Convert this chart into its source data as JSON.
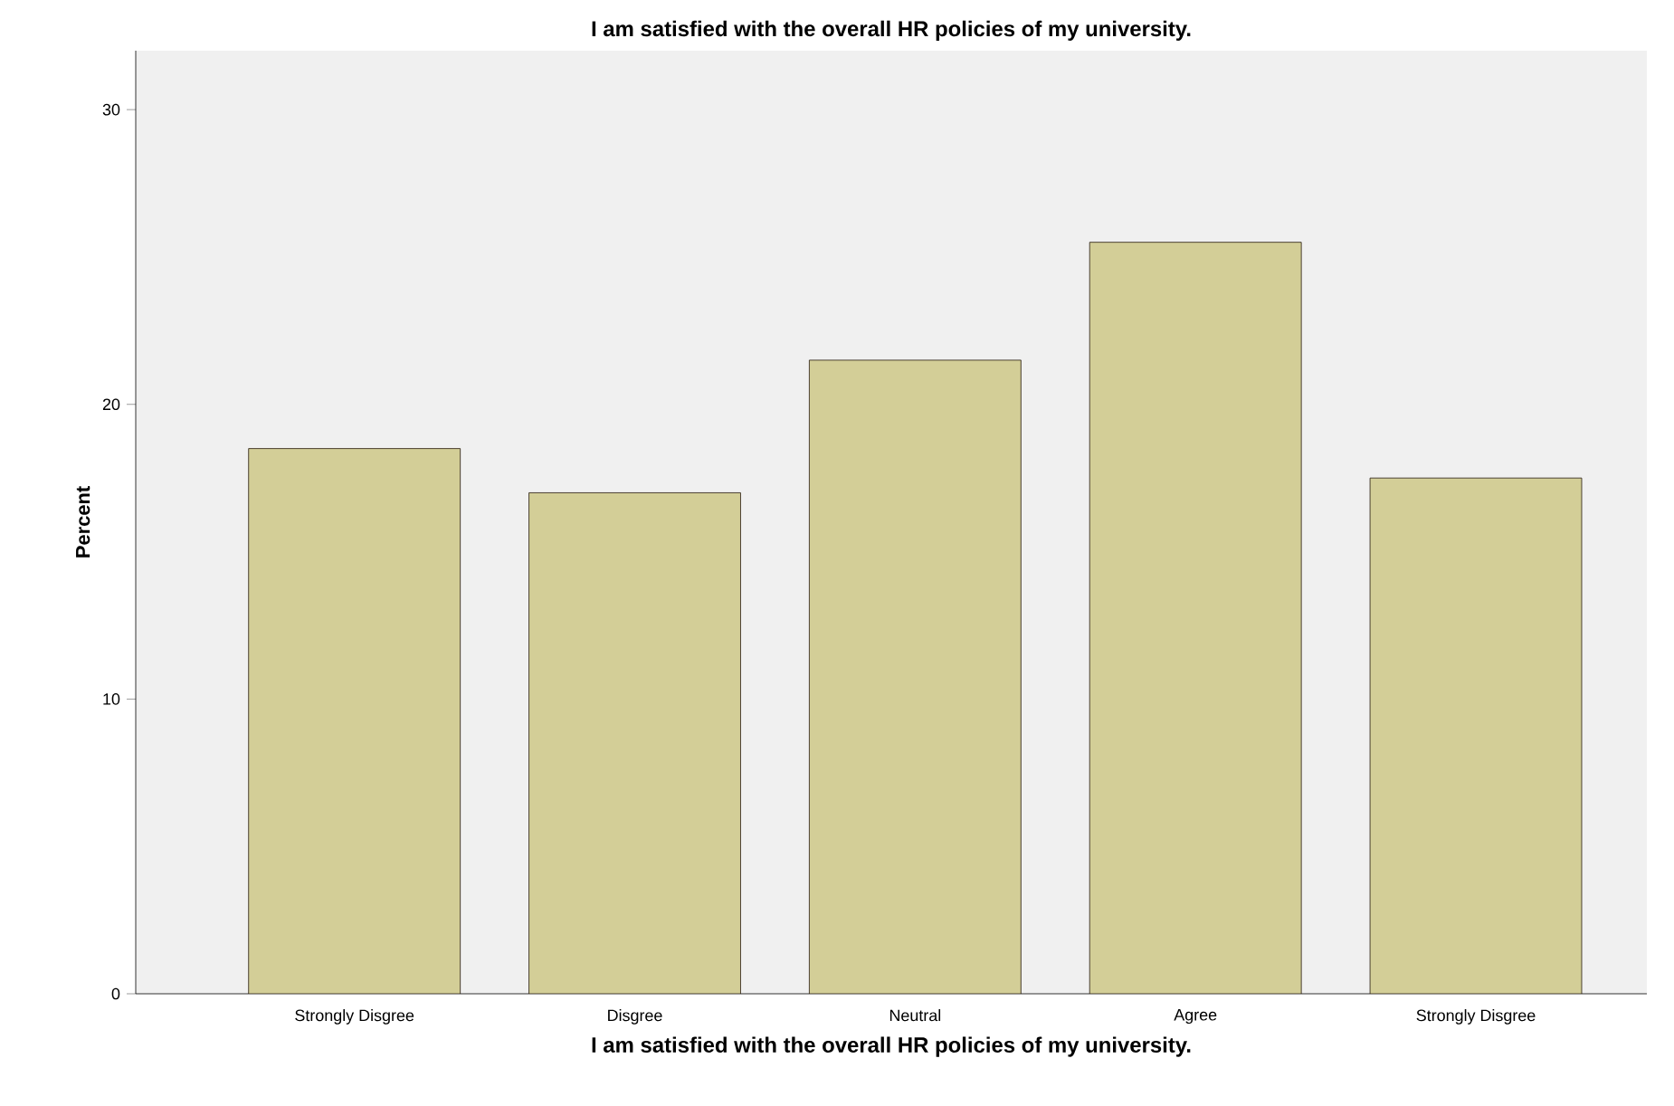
{
  "chart_data": {
    "type": "bar",
    "title": "I am satisfied with the overall HR policies of my university.",
    "xlabel": "I am satisfied with the overall HR policies of my university.",
    "ylabel": "Percent",
    "categories": [
      "Strongly Disgree",
      "Disgree",
      "Neutral",
      "Agree",
      "Strongly Disgree"
    ],
    "values": [
      18.5,
      17.0,
      21.5,
      25.5,
      17.5
    ],
    "color": "#d3ce97",
    "ylim": [
      0,
      32
    ],
    "yticks": [
      0,
      10,
      20,
      30
    ],
    "grid": false
  }
}
